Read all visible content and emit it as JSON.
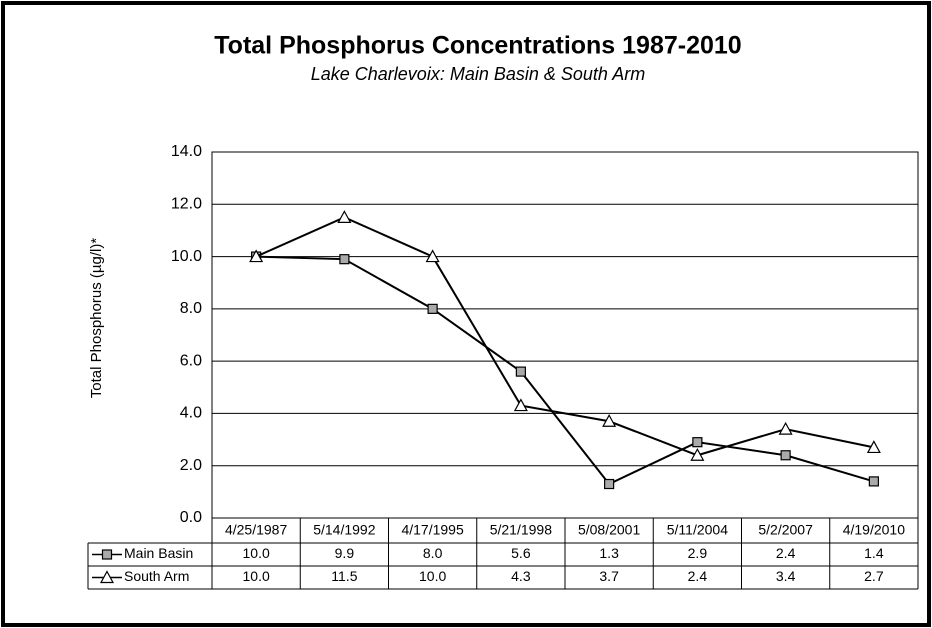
{
  "chart_data": {
    "type": "line",
    "title": "Total Phosphorus Concentrations 1987-2010",
    "subtitle": "Lake Charlevoix: Main Basin & South Arm",
    "y_label": "Total Phosphorus  (µg/l)*",
    "categories": [
      "4/25/1987",
      "5/14/1992",
      "4/17/1995",
      "5/21/1998",
      "5/08/2001",
      "5/11/2004",
      "5/2/2007",
      "4/19/2010"
    ],
    "series": [
      {
        "name": "Main Basin",
        "color": "#000000",
        "marker": "square",
        "values": [
          10.0,
          9.9,
          8.0,
          5.6,
          1.3,
          2.9,
          2.4,
          1.4
        ],
        "value_labels": [
          "10.0",
          "9.9",
          "8.0",
          "5.6",
          "1.3",
          "2.9",
          "2.4",
          "1.4"
        ]
      },
      {
        "name": "South Arm",
        "color": "#000000",
        "marker": "triangle",
        "values": [
          10.0,
          11.5,
          10.0,
          4.3,
          3.7,
          2.4,
          3.4,
          2.7
        ],
        "value_labels": [
          "10.0",
          "11.5",
          "10.0",
          "4.3",
          "3.7",
          "2.4",
          "3.4",
          "2.7"
        ]
      }
    ],
    "ylim": [
      0,
      14
    ],
    "yticks": [
      {
        "value": 0,
        "label": "0.0"
      },
      {
        "value": 2,
        "label": "2.0"
      },
      {
        "value": 4,
        "label": "4.0"
      },
      {
        "value": 6,
        "label": "6.0"
      },
      {
        "value": 8,
        "label": "8.0"
      },
      {
        "value": 10,
        "label": "10.0"
      },
      {
        "value": 12,
        "label": "12.0"
      },
      {
        "value": 14,
        "label": "14.0"
      }
    ],
    "grid": true
  }
}
